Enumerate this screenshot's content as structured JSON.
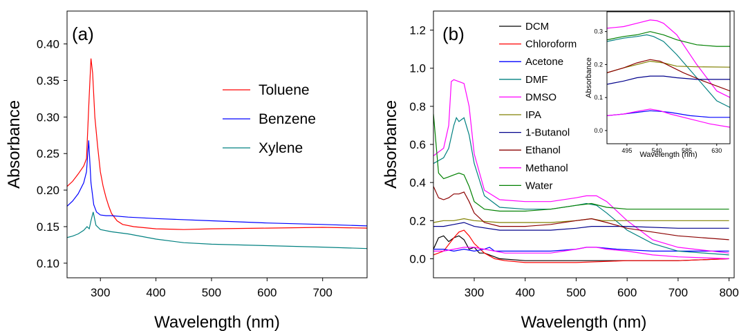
{
  "chart_data": [
    {
      "type": "line",
      "panel_label": "(a)",
      "xlabel": "Wavelength (nm)",
      "ylabel": "Absorbance",
      "xlim": [
        240,
        780
      ],
      "ylim": [
        0.08,
        0.445
      ],
      "xticks": [
        300,
        400,
        500,
        600,
        700
      ],
      "yticks": [
        0.1,
        0.15,
        0.2,
        0.25,
        0.3,
        0.35,
        0.4
      ],
      "ytick_labels": [
        "0.10",
        "0.15",
        "0.20",
        "0.25",
        "0.30",
        "0.35",
        "0.40"
      ],
      "grid": false,
      "legend_position": "right",
      "series": [
        {
          "name": "Toluene",
          "color": "#ff0000",
          "x": [
            240,
            250,
            260,
            270,
            275,
            280,
            283,
            286,
            290,
            295,
            300,
            305,
            310,
            315,
            320,
            330,
            340,
            360,
            400,
            450,
            500,
            600,
            700,
            780
          ],
          "y": [
            0.205,
            0.212,
            0.222,
            0.233,
            0.243,
            0.33,
            0.38,
            0.36,
            0.3,
            0.26,
            0.225,
            0.205,
            0.19,
            0.178,
            0.168,
            0.158,
            0.153,
            0.15,
            0.147,
            0.146,
            0.147,
            0.148,
            0.149,
            0.148
          ]
        },
        {
          "name": "Benzene",
          "color": "#0000ff",
          "x": [
            240,
            250,
            260,
            270,
            275,
            279,
            283,
            288,
            293,
            300,
            310,
            320,
            350,
            400,
            500,
            600,
            700,
            780
          ],
          "y": [
            0.178,
            0.185,
            0.195,
            0.21,
            0.225,
            0.268,
            0.21,
            0.18,
            0.17,
            0.166,
            0.165,
            0.165,
            0.163,
            0.161,
            0.158,
            0.155,
            0.153,
            0.151
          ]
        },
        {
          "name": "Xylene",
          "color": "#008080",
          "x": [
            240,
            250,
            260,
            270,
            276,
            280,
            283,
            287,
            292,
            300,
            320,
            350,
            400,
            450,
            500,
            600,
            700,
            780
          ],
          "y": [
            0.135,
            0.137,
            0.14,
            0.145,
            0.15,
            0.147,
            0.158,
            0.17,
            0.152,
            0.146,
            0.143,
            0.14,
            0.133,
            0.128,
            0.126,
            0.124,
            0.122,
            0.12
          ]
        }
      ]
    },
    {
      "type": "line",
      "panel_label": "(b)",
      "xlabel": "Wavelength (nm)",
      "ylabel": "Absorbance",
      "xlim": [
        220,
        810
      ],
      "ylim": [
        -0.1,
        1.3
      ],
      "xticks": [
        300,
        400,
        500,
        600,
        700,
        800
      ],
      "yticks": [
        0.0,
        0.2,
        0.4,
        0.6,
        0.8,
        1.0,
        1.2
      ],
      "ytick_labels": [
        "0.0",
        "0.2",
        "0.4",
        "0.6",
        "0.8",
        "1.0",
        "1.2"
      ],
      "grid": false,
      "legend_position": "top-center",
      "series": [
        {
          "name": "DCM",
          "color": "#000000",
          "x": [
            220,
            230,
            240,
            250,
            260,
            270,
            280,
            290,
            300,
            310,
            320,
            330,
            340,
            350,
            400,
            500,
            600,
            700,
            800
          ],
          "y": [
            0.05,
            0.11,
            0.12,
            0.09,
            0.11,
            0.12,
            0.1,
            0.05,
            0.06,
            0.03,
            0.03,
            0.02,
            0.01,
            0.0,
            -0.01,
            -0.01,
            -0.01,
            -0.01,
            0.0
          ]
        },
        {
          "name": "Chloroform",
          "color": "#ff0000",
          "x": [
            220,
            240,
            260,
            270,
            280,
            290,
            300,
            320,
            340,
            360,
            400,
            500,
            600,
            700,
            800
          ],
          "y": [
            0.02,
            0.04,
            0.11,
            0.14,
            0.15,
            0.12,
            0.08,
            0.03,
            0.0,
            -0.01,
            -0.02,
            -0.02,
            -0.01,
            -0.01,
            0.0
          ]
        },
        {
          "name": "Acetone",
          "color": "#0000ff",
          "x": [
            220,
            240,
            260,
            280,
            300,
            320,
            330,
            340,
            360,
            400,
            450,
            500,
            520,
            540,
            580,
            650,
            700,
            800
          ],
          "y": [
            0.05,
            0.05,
            0.04,
            0.05,
            0.04,
            0.05,
            0.06,
            0.04,
            0.04,
            0.04,
            0.04,
            0.05,
            0.06,
            0.06,
            0.05,
            0.04,
            0.04,
            0.04
          ]
        },
        {
          "name": "DMF",
          "color": "#008080",
          "x": [
            220,
            240,
            250,
            260,
            265,
            270,
            280,
            290,
            300,
            320,
            350,
            400,
            450,
            500,
            520,
            540,
            560,
            600,
            650,
            700,
            800
          ],
          "y": [
            0.5,
            0.53,
            0.58,
            0.7,
            0.74,
            0.72,
            0.74,
            0.65,
            0.5,
            0.33,
            0.27,
            0.26,
            0.26,
            0.28,
            0.29,
            0.28,
            0.24,
            0.15,
            0.08,
            0.04,
            0.02
          ]
        },
        {
          "name": "DMSO",
          "color": "#ff00ff",
          "x": [
            220,
            240,
            250,
            255,
            260,
            280,
            290,
            300,
            320,
            350,
            400,
            450,
            500,
            520,
            540,
            560,
            600,
            650,
            700,
            800
          ],
          "y": [
            0.54,
            0.58,
            0.7,
            0.93,
            0.94,
            0.92,
            0.8,
            0.55,
            0.36,
            0.31,
            0.3,
            0.3,
            0.32,
            0.33,
            0.33,
            0.3,
            0.2,
            0.1,
            0.06,
            0.03
          ]
        },
        {
          "name": "IPA",
          "color": "#808000",
          "x": [
            220,
            240,
            260,
            280,
            300,
            350,
            400,
            450,
            500,
            530,
            550,
            600,
            650,
            700,
            800
          ],
          "y": [
            0.19,
            0.2,
            0.2,
            0.21,
            0.2,
            0.19,
            0.19,
            0.19,
            0.2,
            0.21,
            0.2,
            0.2,
            0.2,
            0.2,
            0.2
          ]
        },
        {
          "name": "1-Butanol",
          "color": "#00008b",
          "x": [
            220,
            240,
            260,
            280,
            300,
            350,
            400,
            450,
            500,
            530,
            560,
            600,
            700,
            800
          ],
          "y": [
            0.17,
            0.17,
            0.18,
            0.19,
            0.17,
            0.15,
            0.15,
            0.15,
            0.16,
            0.17,
            0.17,
            0.17,
            0.16,
            0.16
          ]
        },
        {
          "name": "Ethanol",
          "color": "#8b0000",
          "x": [
            220,
            230,
            240,
            250,
            260,
            270,
            280,
            290,
            300,
            320,
            350,
            400,
            450,
            500,
            530,
            560,
            600,
            650,
            700,
            800
          ],
          "y": [
            0.38,
            0.32,
            0.31,
            0.32,
            0.34,
            0.34,
            0.35,
            0.3,
            0.24,
            0.19,
            0.17,
            0.17,
            0.18,
            0.2,
            0.21,
            0.19,
            0.16,
            0.14,
            0.12,
            0.1
          ]
        },
        {
          "name": "Methanol",
          "color": "#ff00ff",
          "x": [
            220,
            240,
            260,
            280,
            300,
            320,
            340,
            360,
            400,
            450,
            500,
            520,
            540,
            560,
            600,
            650,
            700,
            800
          ],
          "y": [
            0.04,
            0.04,
            0.05,
            0.06,
            0.06,
            0.05,
            0.04,
            0.03,
            0.03,
            0.03,
            0.05,
            0.06,
            0.06,
            0.05,
            0.04,
            0.02,
            0.01,
            0.0
          ]
        },
        {
          "name": "Water",
          "color": "#008000",
          "x": [
            220,
            230,
            240,
            250,
            260,
            270,
            280,
            290,
            300,
            320,
            350,
            400,
            450,
            500,
            530,
            560,
            600,
            650,
            700,
            750,
            800
          ],
          "y": [
            0.76,
            0.45,
            0.42,
            0.43,
            0.44,
            0.45,
            0.44,
            0.38,
            0.3,
            0.26,
            0.25,
            0.25,
            0.26,
            0.28,
            0.29,
            0.27,
            0.26,
            0.26,
            0.26,
            0.26,
            0.26
          ]
        }
      ]
    },
    {
      "type": "line",
      "role": "inset",
      "xlabel": "Wavelength (nm)",
      "ylabel": "Absorbance",
      "xlim": [
        465,
        650
      ],
      "ylim": [
        -0.04,
        0.36
      ],
      "xticks": [
        495,
        540,
        585,
        630
      ],
      "yticks": [
        0.0,
        0.1,
        0.2,
        0.3
      ],
      "ytick_labels": [
        "0.0",
        "0.1",
        "0.2",
        "0.3"
      ],
      "grid": false,
      "series": [
        {
          "name": "DMSO",
          "color": "#ff00ff",
          "x": [
            465,
            490,
            510,
            530,
            540,
            550,
            570,
            600,
            630,
            650
          ],
          "y": [
            0.31,
            0.315,
            0.325,
            0.335,
            0.333,
            0.325,
            0.29,
            0.2,
            0.12,
            0.1
          ]
        },
        {
          "name": "DMF",
          "color": "#008080",
          "x": [
            465,
            490,
            510,
            525,
            535,
            550,
            570,
            600,
            630,
            650
          ],
          "y": [
            0.27,
            0.28,
            0.285,
            0.29,
            0.285,
            0.27,
            0.23,
            0.16,
            0.09,
            0.07
          ]
        },
        {
          "name": "Water",
          "color": "#008000",
          "x": [
            465,
            490,
            510,
            530,
            550,
            570,
            600,
            630,
            650
          ],
          "y": [
            0.275,
            0.285,
            0.29,
            0.3,
            0.29,
            0.275,
            0.26,
            0.255,
            0.255
          ]
        },
        {
          "name": "IPA",
          "color": "#808000",
          "x": [
            465,
            490,
            510,
            530,
            550,
            570,
            600,
            650
          ],
          "y": [
            0.175,
            0.19,
            0.2,
            0.21,
            0.205,
            0.195,
            0.193,
            0.192
          ]
        },
        {
          "name": "Ethanol",
          "color": "#8b0000",
          "x": [
            465,
            490,
            510,
            530,
            545,
            560,
            580,
            610,
            650
          ],
          "y": [
            0.175,
            0.19,
            0.205,
            0.215,
            0.21,
            0.195,
            0.175,
            0.15,
            0.12
          ]
        },
        {
          "name": "1-Butanol",
          "color": "#00008b",
          "x": [
            465,
            490,
            510,
            530,
            550,
            570,
            600,
            650
          ],
          "y": [
            0.14,
            0.15,
            0.16,
            0.165,
            0.165,
            0.16,
            0.155,
            0.155
          ]
        },
        {
          "name": "Acetone",
          "color": "#0000ff",
          "x": [
            465,
            490,
            510,
            530,
            545,
            560,
            590,
            620,
            650
          ],
          "y": [
            0.045,
            0.05,
            0.055,
            0.06,
            0.058,
            0.055,
            0.045,
            0.04,
            0.04
          ]
        },
        {
          "name": "Methanol",
          "color": "#ff00ff",
          "x": [
            465,
            490,
            510,
            530,
            545,
            560,
            590,
            620,
            650
          ],
          "y": [
            0.045,
            0.05,
            0.058,
            0.065,
            0.06,
            0.05,
            0.035,
            0.02,
            0.01
          ]
        }
      ]
    }
  ]
}
